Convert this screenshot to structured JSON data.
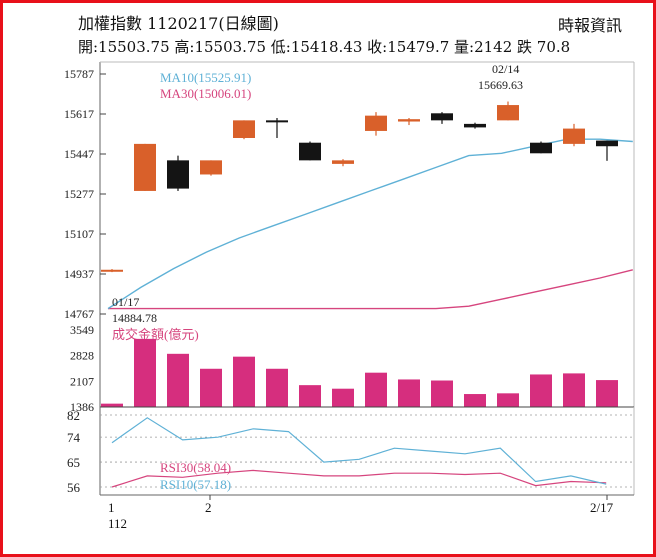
{
  "header": {
    "title": "加權指數 1120217(日線圖)",
    "source": "時報資訊",
    "ohlc": "開:15503.75 高:15503.75 低:15418.43 收:15479.7 量:2142 跌 70.8"
  },
  "colors": {
    "frame": "#e8101a",
    "up": "#d9602a",
    "down": "#141414",
    "volume": "#d62e7e",
    "ma10": "#5fb1d6",
    "ma30": "#d6457e",
    "rsi30": "#d6457e",
    "rsi10": "#5fb1d6",
    "grid": "#9a9a9a"
  },
  "chart_data": [
    {
      "type": "candlestick",
      "title": "加權指數 1120217(日線圖)",
      "ylim": [
        14767,
        15787
      ],
      "yticks": [
        "15787",
        "15617",
        "15447",
        "15277",
        "15107",
        "14937",
        "14767"
      ],
      "ohlc": [
        {
          "open": 14950,
          "high": 14958,
          "low": 14945,
          "close": 14955
        },
        {
          "open": 15290,
          "high": 15490,
          "low": 15290,
          "close": 15490
        },
        {
          "open": 15420,
          "high": 15440,
          "low": 15290,
          "close": 15300
        },
        {
          "open": 15360,
          "high": 15420,
          "low": 15355,
          "close": 15420
        },
        {
          "open": 15515,
          "high": 15590,
          "low": 15510,
          "close": 15590
        },
        {
          "open": 15590,
          "high": 15600,
          "low": 15515,
          "close": 15585
        },
        {
          "open": 15495,
          "high": 15500,
          "low": 15420,
          "close": 15420
        },
        {
          "open": 15405,
          "high": 15425,
          "low": 15395,
          "close": 15420
        },
        {
          "open": 15545,
          "high": 15625,
          "low": 15525,
          "close": 15610
        },
        {
          "open": 15585,
          "high": 15600,
          "low": 15570,
          "close": 15595
        },
        {
          "open": 15620,
          "high": 15625,
          "low": 15575,
          "close": 15590
        },
        {
          "open": 15575,
          "high": 15580,
          "low": 15555,
          "close": 15560
        },
        {
          "open": 15590,
          "high": 15670,
          "low": 15590,
          "close": 15655
        },
        {
          "open": 15495,
          "high": 15500,
          "low": 15450,
          "close": 15450
        },
        {
          "open": 15490,
          "high": 15575,
          "low": 15480,
          "close": 15555
        },
        {
          "open": 15504,
          "high": 15504,
          "low": 15418,
          "close": 15480
        }
      ],
      "ma10": [
        14790,
        14880,
        14960,
        15030,
        15090,
        15140,
        15190,
        15240,
        15290,
        15340,
        15390,
        15440,
        15450,
        15480,
        15510,
        15510,
        15500
      ],
      "ma30": [
        14790,
        14790,
        14790,
        14790,
        14790,
        14790,
        14790,
        14790,
        14790,
        14790,
        14790,
        14800,
        14830,
        14860,
        14890,
        14920,
        14955
      ],
      "legend": {
        "ma10": "MA10(15525.91)",
        "ma30": "MA30(15006.01)"
      },
      "annotations": [
        {
          "label": "01/17",
          "value": "14884.78"
        },
        {
          "label": "02/14",
          "value": "15669.63"
        }
      ]
    },
    {
      "type": "bar",
      "title": "成交金額(億元)",
      "ylim": [
        1386,
        3549
      ],
      "yticks": [
        "3549",
        "2828",
        "2107",
        "1386"
      ],
      "values": [
        1480,
        3300,
        2880,
        2460,
        2800,
        2460,
        2000,
        1900,
        2350,
        2160,
        2130,
        1750,
        1770,
        2300,
        2330,
        2142
      ]
    },
    {
      "type": "line",
      "title": "RSI",
      "ylim": [
        56,
        82
      ],
      "yticks": [
        "82",
        "74",
        "65",
        "56"
      ],
      "series": [
        {
          "name": "RSI10",
          "legend": "RSI10(57.18)",
          "values": [
            72,
            81,
            73,
            74,
            77,
            76,
            65,
            66,
            70,
            69,
            68,
            70,
            58,
            60,
            57
          ]
        },
        {
          "name": "RSI30",
          "legend": "RSI30(58.04)",
          "values": [
            56,
            60,
            59.5,
            61,
            62,
            61,
            60,
            60,
            61,
            61,
            60.5,
            61,
            56.5,
            58,
            57.5
          ]
        }
      ],
      "x_tick_labels": [
        "1",
        "112",
        "2",
        "2/17"
      ]
    }
  ]
}
